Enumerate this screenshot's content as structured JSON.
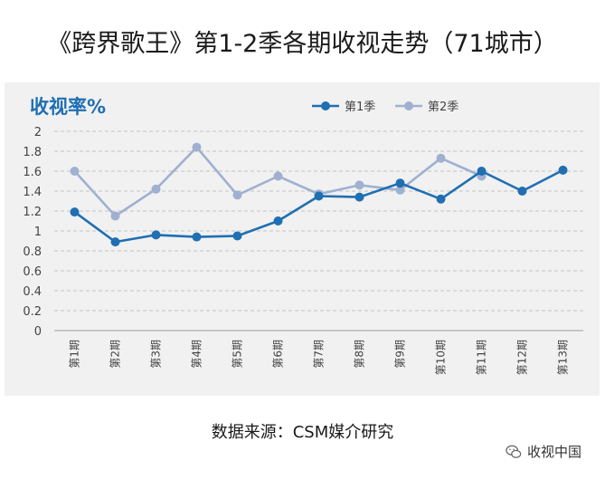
{
  "chart_data": {
    "type": "line",
    "title": "《跨界歌王》第1-2季各期收视走势（71城市）",
    "ylabel": "收视率%",
    "xlabel": "",
    "categories": [
      "第1期",
      "第2期",
      "第3期",
      "第4期",
      "第5期",
      "第6期",
      "第7期",
      "第8期",
      "第9期",
      "第10期",
      "第11期",
      "第12期",
      "第13期"
    ],
    "ylim": [
      0,
      2
    ],
    "yticks": [
      "0",
      "0.2",
      "0.4",
      "0.6",
      "0.8",
      "1",
      "1.2",
      "1.4",
      "1.6",
      "1.8",
      "2"
    ],
    "grid": true,
    "legend": "top-right",
    "series": [
      {
        "name": "第1季",
        "color": "#1f6fb2",
        "values": [
          1.19,
          0.89,
          0.96,
          0.94,
          0.95,
          1.1,
          1.35,
          1.34,
          1.48,
          1.32,
          1.6,
          1.4,
          1.61
        ]
      },
      {
        "name": "第2季",
        "color": "#9fb0d1",
        "values": [
          1.6,
          1.15,
          1.42,
          1.84,
          1.36,
          1.55,
          1.37,
          1.46,
          1.41,
          1.73,
          1.55,
          null,
          null
        ]
      }
    ]
  },
  "source": "数据来源：CSM媒介研究",
  "watermark": "收视中国",
  "watermark_icon": "wechat-icon"
}
